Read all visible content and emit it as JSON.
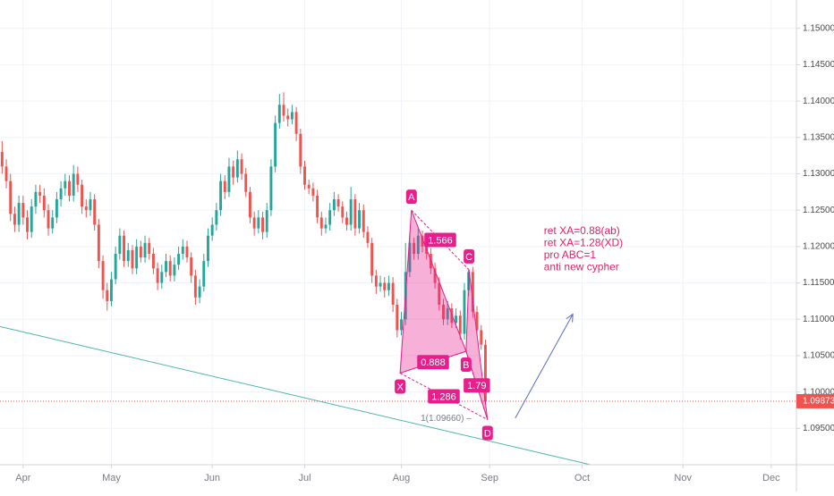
{
  "chart_data": {
    "type": "candlestick",
    "ohlc": [
      [
        1.133,
        1.1345,
        1.13,
        1.131
      ],
      [
        1.131,
        1.132,
        1.128,
        1.129
      ],
      [
        1.129,
        1.13,
        1.1235,
        1.1245
      ],
      [
        1.1245,
        1.1255,
        1.122,
        1.123
      ],
      [
        1.123,
        1.127,
        1.122,
        1.126
      ],
      [
        1.126,
        1.127,
        1.123,
        1.124
      ],
      [
        1.124,
        1.125,
        1.121,
        1.122
      ],
      [
        1.122,
        1.1265,
        1.1212,
        1.1255
      ],
      [
        1.1255,
        1.1285,
        1.1245,
        1.1275
      ],
      [
        1.1275,
        1.1285,
        1.126,
        1.127
      ],
      [
        1.127,
        1.128,
        1.124,
        1.125
      ],
      [
        1.125,
        1.1258,
        1.1215,
        1.1225
      ],
      [
        1.1225,
        1.125,
        1.1218,
        1.124
      ],
      [
        1.124,
        1.1275,
        1.1232,
        1.1265
      ],
      [
        1.1265,
        1.129,
        1.1255,
        1.128
      ],
      [
        1.128,
        1.13,
        1.127,
        1.129
      ],
      [
        1.129,
        1.1298,
        1.1262,
        1.127
      ],
      [
        1.127,
        1.1312,
        1.1262,
        1.13
      ],
      [
        1.13,
        1.131,
        1.1275,
        1.1285
      ],
      [
        1.1285,
        1.1292,
        1.1245,
        1.1255
      ],
      [
        1.1255,
        1.1265,
        1.124,
        1.125
      ],
      [
        1.125,
        1.1275,
        1.1242,
        1.1265
      ],
      [
        1.1265,
        1.1272,
        1.1222,
        1.123
      ],
      [
        1.123,
        1.1238,
        1.117,
        1.118
      ],
      [
        1.118,
        1.1188,
        1.1128,
        1.114
      ],
      [
        1.114,
        1.115,
        1.1112,
        1.1125
      ],
      [
        1.1125,
        1.1165,
        1.1118,
        1.1155
      ],
      [
        1.1155,
        1.12,
        1.1148,
        1.119
      ],
      [
        1.119,
        1.1225,
        1.1182,
        1.1215
      ],
      [
        1.1215,
        1.1222,
        1.1172,
        1.118
      ],
      [
        1.118,
        1.1205,
        1.1172,
        1.1195
      ],
      [
        1.1195,
        1.1202,
        1.1162,
        1.117
      ],
      [
        1.117,
        1.121,
        1.1162,
        1.12
      ],
      [
        1.12,
        1.1208,
        1.1178,
        1.1185
      ],
      [
        1.1185,
        1.1215,
        1.1178,
        1.1205
      ],
      [
        1.1205,
        1.1212,
        1.1182,
        1.119
      ],
      [
        1.119,
        1.1198,
        1.1162,
        1.117
      ],
      [
        1.117,
        1.1178,
        1.114,
        1.115
      ],
      [
        1.115,
        1.1175,
        1.1142,
        1.1165
      ],
      [
        1.1165,
        1.119,
        1.1158,
        1.118
      ],
      [
        1.118,
        1.1188,
        1.1152,
        1.116
      ],
      [
        1.116,
        1.1185,
        1.1152,
        1.1175
      ],
      [
        1.1175,
        1.12,
        1.1168,
        1.119
      ],
      [
        1.119,
        1.121,
        1.1182,
        1.12
      ],
      [
        1.12,
        1.1208,
        1.1178,
        1.1185
      ],
      [
        1.1185,
        1.1192,
        1.115,
        1.116
      ],
      [
        1.116,
        1.1168,
        1.112,
        1.113
      ],
      [
        1.113,
        1.1155,
        1.1122,
        1.1145
      ],
      [
        1.1145,
        1.119,
        1.1138,
        1.118
      ],
      [
        1.118,
        1.1225,
        1.1172,
        1.1215
      ],
      [
        1.1215,
        1.124,
        1.1208,
        1.123
      ],
      [
        1.123,
        1.126,
        1.1222,
        1.125
      ],
      [
        1.125,
        1.13,
        1.1242,
        1.129
      ],
      [
        1.129,
        1.1298,
        1.1265,
        1.1275
      ],
      [
        1.1275,
        1.1322,
        1.1268,
        1.131
      ],
      [
        1.131,
        1.1318,
        1.1285,
        1.1295
      ],
      [
        1.1295,
        1.1332,
        1.1288,
        1.132
      ],
      [
        1.132,
        1.1328,
        1.1292,
        1.13
      ],
      [
        1.13,
        1.1308,
        1.1268,
        1.1275
      ],
      [
        1.1275,
        1.1282,
        1.1232,
        1.124
      ],
      [
        1.124,
        1.1248,
        1.1215,
        1.1225
      ],
      [
        1.1225,
        1.125,
        1.1218,
        1.124
      ],
      [
        1.124,
        1.1248,
        1.121,
        1.122
      ],
      [
        1.122,
        1.126,
        1.1212,
        1.125
      ],
      [
        1.125,
        1.132,
        1.1242,
        1.131
      ],
      [
        1.131,
        1.138,
        1.1302,
        1.137
      ],
      [
        1.137,
        1.141,
        1.1362,
        1.1395
      ],
      [
        1.1395,
        1.1412,
        1.1372,
        1.138
      ],
      [
        1.138,
        1.139,
        1.1365,
        1.1375
      ],
      [
        1.1375,
        1.1395,
        1.1368,
        1.1385
      ],
      [
        1.1385,
        1.1392,
        1.1345,
        1.1355
      ],
      [
        1.1355,
        1.1362,
        1.13,
        1.131
      ],
      [
        1.131,
        1.1318,
        1.1278,
        1.1285
      ],
      [
        1.1285,
        1.1292,
        1.1272,
        1.128
      ],
      [
        1.128,
        1.1288,
        1.1262,
        1.127
      ],
      [
        1.127,
        1.1278,
        1.1232,
        1.124
      ],
      [
        1.124,
        1.1248,
        1.1215,
        1.1225
      ],
      [
        1.1225,
        1.124,
        1.1218,
        1.123
      ],
      [
        1.123,
        1.126,
        1.1222,
        1.125
      ],
      [
        1.125,
        1.1275,
        1.1242,
        1.1265
      ],
      [
        1.1265,
        1.1272,
        1.1248,
        1.1255
      ],
      [
        1.1255,
        1.1262,
        1.1232,
        1.124
      ],
      [
        1.124,
        1.1248,
        1.1222,
        1.123
      ],
      [
        1.123,
        1.1282,
        1.1222,
        1.1265
      ],
      [
        1.1265,
        1.1272,
        1.1215,
        1.1225
      ],
      [
        1.1225,
        1.126,
        1.1218,
        1.125
      ],
      [
        1.125,
        1.1258,
        1.1212,
        1.122
      ],
      [
        1.122,
        1.1228,
        1.1198,
        1.1205
      ],
      [
        1.1205,
        1.1212,
        1.115,
        1.116
      ],
      [
        1.116,
        1.1168,
        1.1135,
        1.1145
      ],
      [
        1.1145,
        1.116,
        1.1138,
        1.115
      ],
      [
        1.115,
        1.1158,
        1.113,
        1.114
      ],
      [
        1.114,
        1.116,
        1.1132,
        1.115
      ],
      [
        1.115,
        1.1158,
        1.111,
        1.112
      ],
      [
        1.112,
        1.1128,
        1.1075,
        1.1085
      ],
      [
        1.1085,
        1.111,
        1.1078,
        1.11
      ],
      [
        1.11,
        1.1205,
        1.1092,
        1.1165
      ],
      [
        1.1165,
        1.122,
        1.1158,
        1.1205
      ],
      [
        1.1205,
        1.1212,
        1.1182,
        1.119
      ],
      [
        1.119,
        1.1225,
        1.1182,
        1.1215
      ],
      [
        1.1215,
        1.1222,
        1.1192,
        1.12
      ],
      [
        1.12,
        1.1208,
        1.1182,
        1.119
      ],
      [
        1.119,
        1.1198,
        1.1162,
        1.117
      ],
      [
        1.117,
        1.1178,
        1.1142,
        1.115
      ],
      [
        1.115,
        1.1158,
        1.1112,
        1.112
      ],
      [
        1.112,
        1.1128,
        1.1092,
        1.11
      ],
      [
        1.11,
        1.1125,
        1.1092,
        1.1115
      ],
      [
        1.1115,
        1.1122,
        1.1088,
        1.1095
      ],
      [
        1.1095,
        1.1115,
        1.1088,
        1.1105
      ],
      [
        1.1105,
        1.1112,
        1.1072,
        1.108
      ],
      [
        1.108,
        1.115,
        1.1072,
        1.114
      ],
      [
        1.114,
        1.1168,
        1.1132,
        1.1165
      ],
      [
        1.1165,
        1.1172,
        1.1102,
        1.111
      ],
      [
        1.111,
        1.1118,
        1.1078,
        1.1085
      ],
      [
        1.1085,
        1.1092,
        1.1058,
        1.1065
      ],
      [
        1.1065,
        1.1072,
        1.0982,
        1.0987
      ]
    ],
    "up_color": "#26a69a",
    "down_color": "#ef5350",
    "xlim": [
      -0.5,
      189
    ],
    "xticks": [
      {
        "value": 5,
        "label": "Apr"
      },
      {
        "value": 26,
        "label": "May"
      },
      {
        "value": 50,
        "label": "Jun"
      },
      {
        "value": 72,
        "label": "Jul"
      },
      {
        "value": 95,
        "label": "Aug"
      },
      {
        "value": 116,
        "label": "Sep"
      },
      {
        "value": 138,
        "label": "Oct"
      },
      {
        "value": 162,
        "label": "Nov"
      },
      {
        "value": 183,
        "label": "Dec"
      }
    ],
    "ylim": [
      1.09,
      1.1539
    ],
    "yticks": [
      {
        "value": 1.095,
        "label": "1.09500"
      },
      {
        "value": 1.1,
        "label": "1.10000"
      },
      {
        "value": 1.105,
        "label": "1.10500"
      },
      {
        "value": 1.11,
        "label": "1.11000"
      },
      {
        "value": 1.115,
        "label": "1.11500"
      },
      {
        "value": 1.12,
        "label": "1.12000"
      },
      {
        "value": 1.125,
        "label": "1.12500"
      },
      {
        "value": 1.13,
        "label": "1.13000"
      },
      {
        "value": 1.135,
        "label": "1.13500"
      },
      {
        "value": 1.14,
        "label": "1.14000"
      },
      {
        "value": 1.145,
        "label": "1.14500"
      },
      {
        "value": 1.15,
        "label": "1.15000"
      }
    ],
    "grid": true,
    "last_price": {
      "value": 1.09873,
      "label": "1.09873",
      "color": "#ef5350"
    },
    "pattern": {
      "color": "#e91e8c",
      "points": [
        {
          "name": "X",
          "x": 94.7,
          "y": 1.1026
        },
        {
          "name": "A",
          "x": 97.4,
          "y": 1.125
        },
        {
          "name": "B",
          "x": 110.4,
          "y": 1.1056
        },
        {
          "name": "C",
          "x": 111.1,
          "y": 1.1168
        },
        {
          "name": "D",
          "x": 115.5,
          "y": 1.0962
        }
      ],
      "legs": [
        {
          "label": "0.888",
          "from": "X",
          "to": "B"
        },
        {
          "label": "1.566",
          "from": "A",
          "to": "C"
        },
        {
          "label": "1.286",
          "from": "X",
          "to": "D"
        },
        {
          "label": "1.79",
          "from": "B",
          "to": "D"
        }
      ],
      "target": {
        "label": "1(1.09660) –",
        "value": 1.0966
      }
    },
    "annotation": {
      "lines": [
        "ret XA=0.88(ab)",
        "ret XA=1.28(XD)",
        "pro ABC=1",
        "anti new cypher"
      ],
      "x": 128.9,
      "y": 1.1221,
      "color": "#e91e63"
    },
    "trendline": {
      "x": [
        -0.5,
        140
      ],
      "y": [
        1.109,
        1.09
      ],
      "color": "#4db6ac"
    },
    "arrow": {
      "x": [
        122.1,
        135.8
      ],
      "y": [
        1.0964,
        1.1107
      ],
      "color": "#5c6bc0"
    }
  }
}
